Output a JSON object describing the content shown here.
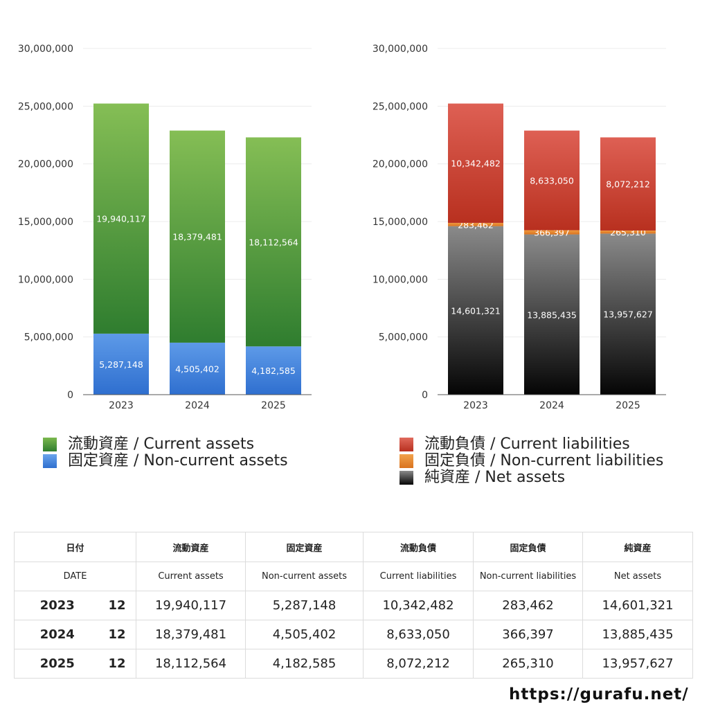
{
  "chart_data": [
    {
      "type": "bar",
      "stacked": true,
      "categories": [
        "2023",
        "2024",
        "2025"
      ],
      "series": [
        {
          "name": "固定資産 / Non-current assets",
          "values": [
            5287148,
            4505402,
            4182585
          ],
          "value_labels": [
            "5,287,148",
            "4,505,402",
            "4,182,585"
          ],
          "color_top": "#5d9ae8",
          "color_bottom": "#2f6fcf"
        },
        {
          "name": "流動資産 / Current assets",
          "values": [
            19940117,
            18379481,
            18112564
          ],
          "value_labels": [
            "19,940,117",
            "18,379,481",
            "18,112,564"
          ],
          "color_top": "#85be55",
          "color_bottom": "#2f7d2f"
        }
      ],
      "ylim": [
        0,
        30000000
      ],
      "yticks": [
        0,
        5000000,
        10000000,
        15000000,
        20000000,
        25000000,
        30000000
      ],
      "ytick_labels": [
        "0",
        "5,000,000",
        "10,000,000",
        "15,000,000",
        "20,000,000",
        "25,000,000",
        "30,000,000"
      ],
      "grid": true,
      "legend_position": "bottom"
    },
    {
      "type": "bar",
      "stacked": true,
      "categories": [
        "2023",
        "2024",
        "2025"
      ],
      "series": [
        {
          "name": "純資産 / Net assets",
          "values": [
            14601321,
            13885435,
            13957627
          ],
          "value_labels": [
            "14,601,321",
            "13,885,435",
            "13,957,627"
          ],
          "color_top": "#8a8a8a",
          "color_bottom": "#050505"
        },
        {
          "name": "固定負債 / Non-current liabilities",
          "values": [
            283462,
            366397,
            265310
          ],
          "value_labels": [
            "283,462",
            "366,397",
            "265,310"
          ],
          "color_top": "#f09a40",
          "color_bottom": "#d9731f"
        },
        {
          "name": "流動負債 / Current liabilities",
          "values": [
            10342482,
            8633050,
            8072212
          ],
          "value_labels": [
            "10,342,482",
            "8,633,050",
            "8,072,212"
          ],
          "color_top": "#de6054",
          "color_bottom": "#b8301f"
        }
      ],
      "ylim": [
        0,
        30000000
      ],
      "yticks": [
        0,
        5000000,
        10000000,
        15000000,
        20000000,
        25000000,
        30000000
      ],
      "ytick_labels": [
        "0",
        "5,000,000",
        "10,000,000",
        "15,000,000",
        "20,000,000",
        "25,000,000",
        "30,000,000"
      ],
      "grid": true,
      "legend_position": "bottom"
    }
  ],
  "legend_left": [
    {
      "label": "流動資産 / Current assets",
      "color": "#5aa83c"
    },
    {
      "label": "固定資産 / Non-current assets",
      "color": "#3a7fdc"
    }
  ],
  "legend_right": [
    {
      "label": "流動負債 / Current liabilities",
      "color": "#d2483a"
    },
    {
      "label": "固定負債 / Non-current liabilities",
      "color": "#e8832c"
    },
    {
      "label": "純資産 / Net assets",
      "color": "#333333"
    }
  ],
  "table": {
    "header_jp": [
      "日付",
      "流動資産",
      "固定資産",
      "流動負債",
      "固定負債",
      "純資産"
    ],
    "header_en": [
      "DATE",
      "Current assets",
      "Non-current assets",
      "Current liabilities",
      "Non-current liabilities",
      "Net assets"
    ],
    "rows": [
      {
        "year": "2023",
        "month": "12",
        "values": [
          "19,940,117",
          "5,287,148",
          "10,342,482",
          "283,462",
          "14,601,321"
        ]
      },
      {
        "year": "2024",
        "month": "12",
        "values": [
          "18,379,481",
          "4,505,402",
          "8,633,050",
          "366,397",
          "13,885,435"
        ]
      },
      {
        "year": "2025",
        "month": "12",
        "values": [
          "18,112,564",
          "4,182,585",
          "8,072,212",
          "265,310",
          "13,957,627"
        ]
      }
    ]
  },
  "footer": {
    "url": "https://gurafu.net/"
  }
}
